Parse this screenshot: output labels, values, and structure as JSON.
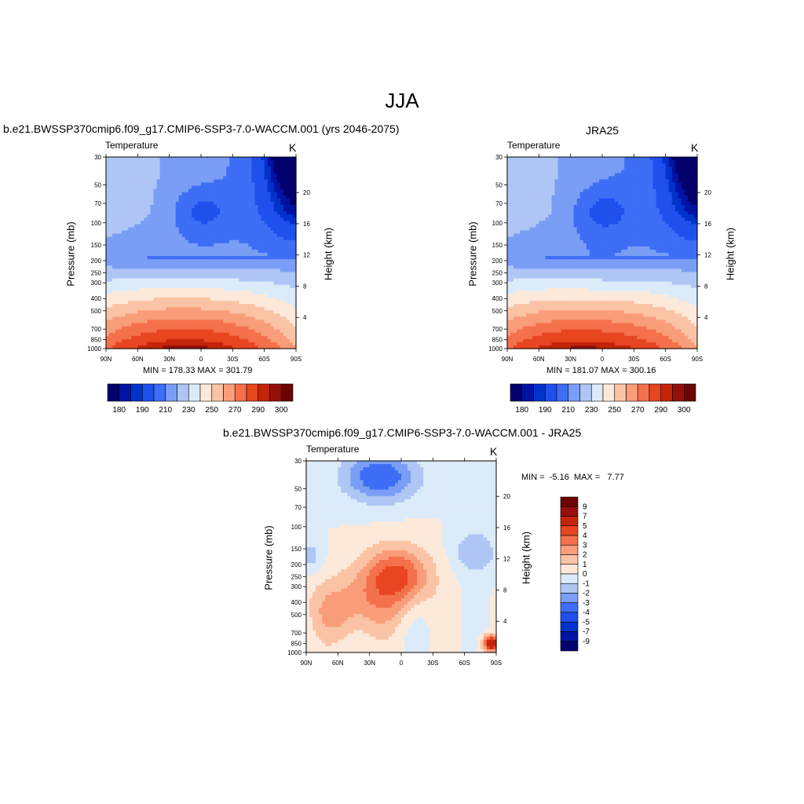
{
  "title": "JJA",
  "chart_data": [
    {
      "type": "contour",
      "title": "b.e21.BWSSP370cmip6.f09_g17.CMIP6-SSP3-7.0-WACCM.001 (yrs 2046-2075)",
      "variable": "Temperature",
      "units": "K",
      "xlabel": "",
      "ylabel": "Pressure (mb)",
      "ylabel_right": "Height (km)",
      "x_ticks": [
        "90N",
        "60N",
        "30N",
        "0",
        "30S",
        "60S",
        "90S"
      ],
      "y_ticks": [
        30,
        50,
        70,
        100,
        150,
        200,
        250,
        300,
        400,
        500,
        700,
        850,
        1000
      ],
      "y_right_ticks": [
        4,
        8,
        12,
        16,
        20
      ],
      "y_scale": "log",
      "min": 178.33,
      "max": 301.79,
      "minmax_text": "MIN = 178.33  MAX = 301.79",
      "levels": [
        180,
        185,
        190,
        200,
        210,
        220,
        230,
        240,
        250,
        260,
        270,
        280,
        290,
        295,
        300
      ],
      "colorbar_labels": [
        180,
        190,
        210,
        230,
        250,
        270,
        290,
        300
      ],
      "colorbar_orientation": "horizontal"
    },
    {
      "type": "contour",
      "title": "JRA25",
      "variable": "Temperature",
      "units": "K",
      "xlabel": "",
      "ylabel": "Pressure (mb)",
      "ylabel_right": "Height (km)",
      "x_ticks": [
        "90N",
        "60N",
        "30N",
        "0",
        "30S",
        "60S",
        "90S"
      ],
      "y_ticks": [
        30,
        50,
        70,
        100,
        150,
        200,
        250,
        300,
        400,
        500,
        700,
        850,
        1000
      ],
      "y_right_ticks": [
        4,
        8,
        12,
        16,
        20
      ],
      "y_scale": "log",
      "min": 181.07,
      "max": 300.16,
      "minmax_text": "MIN = 181.07  MAX = 300.16",
      "levels": [
        180,
        185,
        190,
        200,
        210,
        220,
        230,
        240,
        250,
        260,
        270,
        280,
        290,
        295,
        300
      ],
      "colorbar_labels": [
        180,
        190,
        210,
        230,
        250,
        270,
        290,
        300
      ],
      "colorbar_orientation": "horizontal"
    },
    {
      "type": "contour",
      "title": "b.e21.BWSSP370cmip6.f09_g17.CMIP6-SSP3-7.0-WACCM.001 - JRA25",
      "variable": "Temperature",
      "units": "K",
      "xlabel": "",
      "ylabel": "Pressure (mb)",
      "ylabel_right": "Height (km)",
      "x_ticks": [
        "90N",
        "60N",
        "30N",
        "0",
        "30S",
        "60S",
        "90S"
      ],
      "y_ticks": [
        30,
        50,
        70,
        100,
        150,
        200,
        250,
        300,
        400,
        500,
        700,
        850,
        1000
      ],
      "y_right_ticks": [
        4,
        8,
        12,
        16,
        20
      ],
      "y_scale": "log",
      "min": -5.16,
      "max": 7.77,
      "minmax_text": "MIN =  -5.16  MAX =   7.77",
      "levels": [
        -9,
        -7,
        -5,
        -4,
        -3,
        -2,
        -1,
        0,
        1,
        2,
        3,
        4,
        5,
        7,
        9
      ],
      "colorbar_labels": [
        9,
        7,
        5,
        4,
        3,
        2,
        1,
        0,
        -1,
        -2,
        -3,
        -4,
        -5,
        -7,
        -9
      ],
      "colorbar_orientation": "vertical"
    }
  ],
  "palette": [
    "#03006d",
    "#0013a4",
    "#0033cc",
    "#1f50ee",
    "#3d6ef5",
    "#7a9ef5",
    "#afc6f5",
    "#dcebfa",
    "#fde9da",
    "#fbc3a5",
    "#f99d79",
    "#f4714c",
    "#e74620",
    "#c4250a",
    "#96100a",
    "#6c0404"
  ]
}
